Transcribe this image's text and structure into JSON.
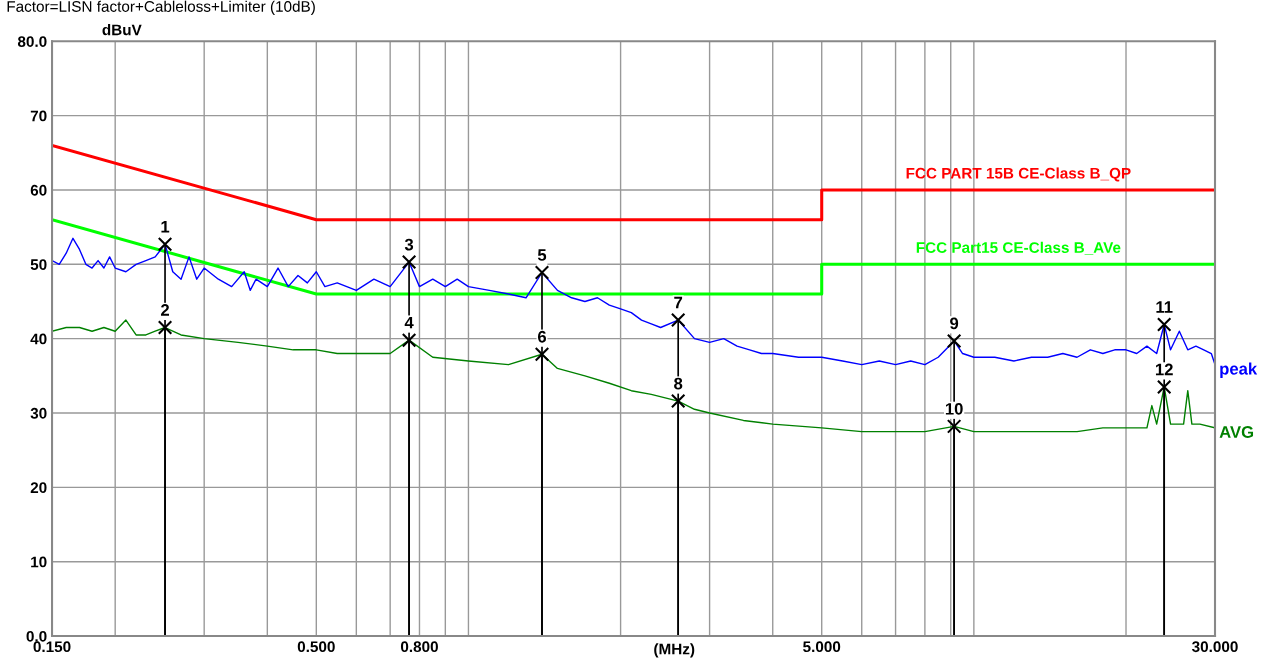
{
  "chart_data": {
    "type": "line",
    "title": "Factor=LISN factor+Cableloss+Limiter (10dB)",
    "xlabel": "(MHz)",
    "ylabel": "dBuV",
    "log": "x",
    "grid": true,
    "legend": false,
    "xlim": [
      0.15,
      30
    ],
    "ylim": [
      0,
      80
    ],
    "xticks": [
      {
        "value": 0.15,
        "label": "0.150"
      },
      {
        "value": 0.2,
        "label": null
      },
      {
        "value": 0.3,
        "label": null
      },
      {
        "value": 0.4,
        "label": null
      },
      {
        "value": 0.5,
        "label": "0.500"
      },
      {
        "value": 0.6,
        "label": null
      },
      {
        "value": 0.7,
        "label": null
      },
      {
        "value": 0.8,
        "label": "0.800"
      },
      {
        "value": 0.9,
        "label": null
      },
      {
        "value": 1,
        "label": null
      },
      {
        "value": 2,
        "label": null
      },
      {
        "value": 3,
        "label": null
      },
      {
        "value": 4,
        "label": null
      },
      {
        "value": 5,
        "label": "5.000"
      },
      {
        "value": 6,
        "label": null
      },
      {
        "value": 7,
        "label": null
      },
      {
        "value": 8,
        "label": null
      },
      {
        "value": 9,
        "label": null
      },
      {
        "value": 10,
        "label": null
      },
      {
        "value": 20,
        "label": null
      },
      {
        "value": 30,
        "label": "30.000"
      }
    ],
    "yticks": [
      {
        "value": 0,
        "label": "0.0"
      },
      10,
      20,
      30,
      40,
      50,
      60,
      70,
      {
        "value": 80,
        "label": "80.0"
      }
    ],
    "series": [
      {
        "name": "FCC PART 15B CE-Class B_QP",
        "color": "#ff0000",
        "x": [
          0.15,
          0.5,
          5,
          5,
          30
        ],
        "values": [
          66,
          56,
          56,
          60,
          60
        ]
      },
      {
        "name": "FCC Part15 CE-Class B_AVe",
        "color": "#00ff00",
        "x": [
          0.15,
          0.5,
          5,
          5,
          30
        ],
        "values": [
          56,
          46,
          46,
          50,
          50
        ]
      },
      {
        "name": "peak",
        "color": "#0000ff",
        "x": [
          0.15,
          0.155,
          0.16,
          0.165,
          0.17,
          0.175,
          0.18,
          0.185,
          0.19,
          0.195,
          0.2,
          0.21,
          0.22,
          0.23,
          0.24,
          0.251,
          0.26,
          0.27,
          0.28,
          0.29,
          0.3,
          0.32,
          0.34,
          0.36,
          0.37,
          0.38,
          0.4,
          0.42,
          0.44,
          0.46,
          0.48,
          0.5,
          0.52,
          0.55,
          0.6,
          0.65,
          0.7,
          0.763,
          0.8,
          0.85,
          0.9,
          0.95,
          1.0,
          1.1,
          1.2,
          1.3,
          1.398,
          1.5,
          1.6,
          1.7,
          1.8,
          1.9,
          2.0,
          2.1,
          2.2,
          2.3,
          2.4,
          2.6,
          2.8,
          3.0,
          3.2,
          3.4,
          3.6,
          3.8,
          4.0,
          4.5,
          5.0,
          5.5,
          6.0,
          6.5,
          7.0,
          7.5,
          8.0,
          8.5,
          9.14,
          9.5,
          10,
          11,
          12,
          13,
          14,
          15,
          16,
          17,
          18,
          19,
          20,
          21,
          22,
          23,
          23.8,
          24.5,
          25.5,
          26.5,
          27.5,
          28.5,
          29.5,
          30
        ],
        "values": [
          50.5,
          50,
          51.5,
          53.5,
          52,
          50,
          49.5,
          50.5,
          49.5,
          51,
          49.5,
          49,
          50,
          50.5,
          51,
          52.7,
          49,
          48,
          51,
          48,
          49.5,
          48,
          47,
          49,
          46.5,
          48,
          47,
          49.5,
          47,
          48.5,
          47.5,
          49,
          47,
          47.5,
          46.5,
          48,
          47,
          50.3,
          47,
          48,
          47,
          48,
          47,
          46.5,
          46,
          45.5,
          48.9,
          46.5,
          45.5,
          45,
          45.5,
          44.5,
          44,
          43.5,
          42.5,
          42,
          41.5,
          42.5,
          40,
          39.5,
          40,
          39,
          38.5,
          38,
          38,
          37.5,
          37.5,
          37,
          36.5,
          37,
          36.5,
          37,
          36.5,
          37.5,
          39.7,
          38,
          37.5,
          37.5,
          37,
          37.5,
          37.5,
          38,
          37.5,
          38.5,
          38,
          38.5,
          38.5,
          38,
          39,
          38,
          41.9,
          38.5,
          41,
          38.5,
          39,
          38.5,
          38,
          36.5
        ]
      },
      {
        "name": "AVG",
        "color": "#008000",
        "x": [
          0.15,
          0.16,
          0.17,
          0.18,
          0.19,
          0.2,
          0.21,
          0.22,
          0.23,
          0.24,
          0.251,
          0.27,
          0.3,
          0.35,
          0.4,
          0.45,
          0.5,
          0.55,
          0.6,
          0.7,
          0.763,
          0.85,
          1.0,
          1.2,
          1.398,
          1.5,
          1.7,
          1.9,
          2.1,
          2.3,
          2.6,
          2.8,
          3.0,
          3.5,
          4,
          5,
          6,
          7,
          8,
          9.14,
          10,
          12,
          14,
          16,
          18,
          20,
          22,
          22.5,
          23,
          23.8,
          24.5,
          26,
          26.5,
          27,
          28,
          30
        ],
        "values": [
          41,
          41.5,
          41.5,
          41,
          41.5,
          41,
          42.5,
          40.5,
          40.5,
          41,
          41.5,
          40.5,
          40,
          39.5,
          39,
          38.5,
          38.5,
          38,
          38,
          38,
          39.8,
          37.5,
          37,
          36.5,
          37.9,
          36,
          35,
          34,
          33,
          32.5,
          31.6,
          30.5,
          30,
          29,
          28.5,
          28,
          27.5,
          27.5,
          27.5,
          28.2,
          27.5,
          27.5,
          27.5,
          27.5,
          28,
          28,
          28,
          31,
          28.5,
          33.5,
          28.5,
          28.5,
          33,
          28.5,
          28.5,
          28
        ]
      },
      {
        "type": "lollipop",
        "color": "#000000",
        "marker": "cross",
        "x": [
          0.251,
          0.251,
          0.763,
          0.763,
          1.398,
          1.398,
          2.6,
          2.6,
          9.14,
          9.14,
          23.8,
          23.8
        ],
        "values": [
          52.7,
          41.5,
          50.3,
          39.8,
          48.9,
          37.9,
          42.5,
          31.6,
          39.7,
          28.2,
          41.9,
          33.5
        ]
      }
    ],
    "annotations": [
      {
        "text": "1",
        "x": 0.251,
        "y": 52.7
      },
      {
        "text": "2",
        "x": 0.251,
        "y": 41.5
      },
      {
        "text": "3",
        "x": 0.763,
        "y": 50.3
      },
      {
        "text": "4",
        "x": 0.763,
        "y": 39.8
      },
      {
        "text": "5",
        "x": 1.398,
        "y": 48.9
      },
      {
        "text": "6",
        "x": 1.398,
        "y": 37.9
      },
      {
        "text": "7",
        "x": 2.6,
        "y": 42.5
      },
      {
        "text": "8",
        "x": 2.6,
        "y": 31.6
      },
      {
        "text": "9",
        "x": 9.14,
        "y": 39.7
      },
      {
        "text": "10",
        "x": 9.14,
        "y": 28.2
      },
      {
        "text": "11",
        "x": 23.8,
        "y": 41.9
      },
      {
        "text": "12",
        "x": 23.8,
        "y": 33.5
      }
    ]
  }
}
